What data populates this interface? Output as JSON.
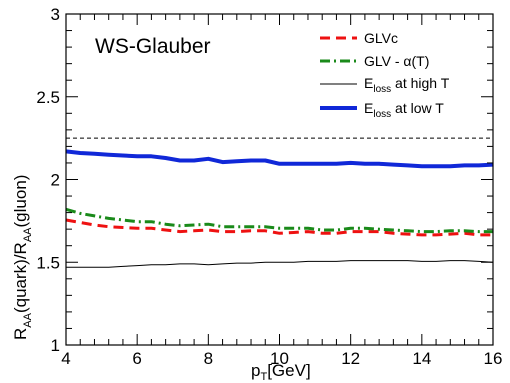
{
  "chart_data": {
    "type": "line",
    "panel_label": "WS-Glauber",
    "xlabel": {
      "main": "p",
      "sub": "T",
      "rest": "[GeV]"
    },
    "ylabel": {
      "p1": "R",
      "s1": "AA",
      "p2": "(quark)/R",
      "s2": "AA",
      "p3": "(gluon)"
    },
    "xlim": [
      4,
      16
    ],
    "ylim": [
      1,
      3
    ],
    "x_ticks": [
      4,
      6,
      8,
      10,
      12,
      14,
      16
    ],
    "y_ticks": [
      1,
      1.5,
      2,
      2.5,
      3
    ],
    "y_tick_labels": [
      "1",
      "1.5",
      "2",
      "2.5",
      "3"
    ],
    "reference_line": {
      "y": 2.25,
      "color": "#000000",
      "style": "dashed"
    },
    "grid": false,
    "legend_position": "top-right",
    "series": [
      {
        "name": "GLVc",
        "color": "#ee1111",
        "style": "dashed",
        "x": [
          4.0,
          4.4,
          4.8,
          5.2,
          5.6,
          6.0,
          6.4,
          6.8,
          7.2,
          7.6,
          8.0,
          8.4,
          8.8,
          9.2,
          9.6,
          10.0,
          10.4,
          10.8,
          11.2,
          11.6,
          12.0,
          12.4,
          12.8,
          13.2,
          13.6,
          14.0,
          14.4,
          14.8,
          15.2,
          15.6,
          16.0
        ],
        "y": [
          1.755,
          1.74,
          1.725,
          1.715,
          1.71,
          1.705,
          1.705,
          1.695,
          1.685,
          1.69,
          1.695,
          1.685,
          1.685,
          1.69,
          1.69,
          1.675,
          1.68,
          1.685,
          1.675,
          1.675,
          1.685,
          1.685,
          1.685,
          1.675,
          1.67,
          1.665,
          1.665,
          1.67,
          1.675,
          1.665,
          1.665
        ]
      },
      {
        "name_parts": {
          "before": "GLV - ",
          "greek": "α",
          "after": "(T)"
        },
        "color": "#1a8a1a",
        "style": "dashdot",
        "x": [
          4.0,
          4.4,
          4.8,
          5.2,
          5.6,
          6.0,
          6.4,
          6.8,
          7.2,
          7.6,
          8.0,
          8.4,
          8.8,
          9.2,
          9.6,
          10.0,
          10.4,
          10.8,
          11.2,
          11.6,
          12.0,
          12.4,
          12.8,
          13.2,
          13.6,
          14.0,
          14.4,
          14.8,
          15.2,
          15.6,
          16.0
        ],
        "y": [
          1.82,
          1.795,
          1.78,
          1.765,
          1.755,
          1.745,
          1.745,
          1.73,
          1.72,
          1.725,
          1.73,
          1.715,
          1.715,
          1.715,
          1.715,
          1.705,
          1.705,
          1.705,
          1.695,
          1.695,
          1.705,
          1.705,
          1.7,
          1.695,
          1.69,
          1.685,
          1.685,
          1.69,
          1.69,
          1.685,
          1.685
        ]
      },
      {
        "name_parts": {
          "main": "E",
          "sub": "loss",
          "rest": " at high T"
        },
        "color": "#000000",
        "style": "solid-thin",
        "x": [
          4.0,
          4.4,
          4.8,
          5.2,
          5.6,
          6.0,
          6.4,
          6.8,
          7.2,
          7.6,
          8.0,
          8.4,
          8.8,
          9.2,
          9.6,
          10.0,
          10.4,
          10.8,
          11.2,
          11.6,
          12.0,
          12.4,
          12.8,
          13.2,
          13.6,
          14.0,
          14.4,
          14.8,
          15.2,
          15.6,
          16.0
        ],
        "y": [
          1.47,
          1.47,
          1.47,
          1.47,
          1.475,
          1.48,
          1.485,
          1.485,
          1.49,
          1.49,
          1.485,
          1.49,
          1.495,
          1.495,
          1.5,
          1.5,
          1.5,
          1.505,
          1.505,
          1.505,
          1.51,
          1.51,
          1.51,
          1.51,
          1.51,
          1.505,
          1.505,
          1.51,
          1.51,
          1.505,
          1.5
        ]
      },
      {
        "name_parts": {
          "main": "E",
          "sub": "loss",
          "rest": " at low T"
        },
        "color": "#1028d8",
        "style": "solid-thick",
        "x": [
          4.0,
          4.4,
          4.8,
          5.2,
          5.6,
          6.0,
          6.4,
          6.8,
          7.2,
          7.6,
          8.0,
          8.4,
          8.8,
          9.2,
          9.6,
          10.0,
          10.4,
          10.8,
          11.2,
          11.6,
          12.0,
          12.4,
          12.8,
          13.2,
          13.6,
          14.0,
          14.4,
          14.8,
          15.2,
          15.6,
          16.0
        ],
        "y": [
          2.17,
          2.16,
          2.155,
          2.15,
          2.145,
          2.14,
          2.14,
          2.13,
          2.115,
          2.115,
          2.125,
          2.105,
          2.11,
          2.115,
          2.115,
          2.095,
          2.095,
          2.095,
          2.095,
          2.095,
          2.1,
          2.095,
          2.095,
          2.09,
          2.085,
          2.08,
          2.08,
          2.08,
          2.085,
          2.085,
          2.09
        ]
      }
    ]
  }
}
